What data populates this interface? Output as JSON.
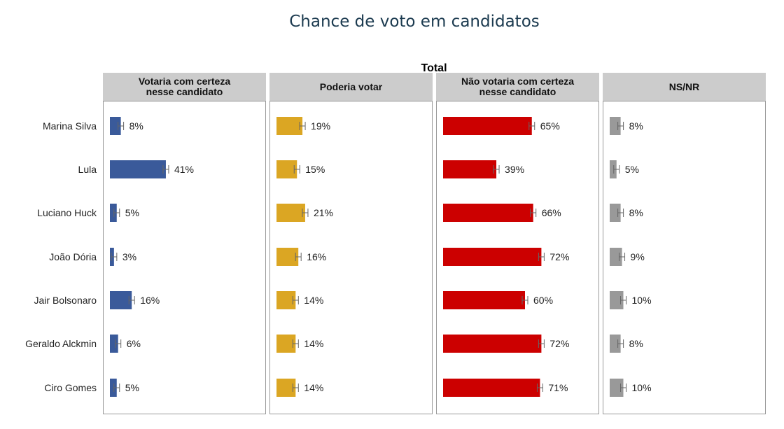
{
  "title": "Chance de voto em candidatos",
  "chart_data": {
    "type": "bar",
    "orientation": "horizontal",
    "title": "Chance de voto em candidatos",
    "subtitle": "Total",
    "categories": [
      "Marina Silva",
      "Lula",
      "Luciano Huck",
      "João Dória",
      "Jair Bolsonaro",
      "Geraldo Alckmin",
      "Ciro Gomes"
    ],
    "series": [
      {
        "name": "Votaria com certeza nesse candidato",
        "color": "#3a5a9a",
        "values": [
          8,
          41,
          5,
          3,
          16,
          6,
          5
        ]
      },
      {
        "name": "Poderia votar",
        "color": "#dba623",
        "values": [
          19,
          15,
          21,
          16,
          14,
          14,
          14
        ]
      },
      {
        "name": "Não votaria com certeza nesse candidato",
        "color": "#cc0000",
        "values": [
          65,
          39,
          66,
          72,
          60,
          72,
          71
        ]
      },
      {
        "name": "NS/NR",
        "color": "#999999",
        "values": [
          8,
          5,
          8,
          9,
          10,
          8,
          10
        ]
      }
    ],
    "value_suffix": "%",
    "error_bars": true,
    "xlim": [
      0,
      100
    ]
  }
}
